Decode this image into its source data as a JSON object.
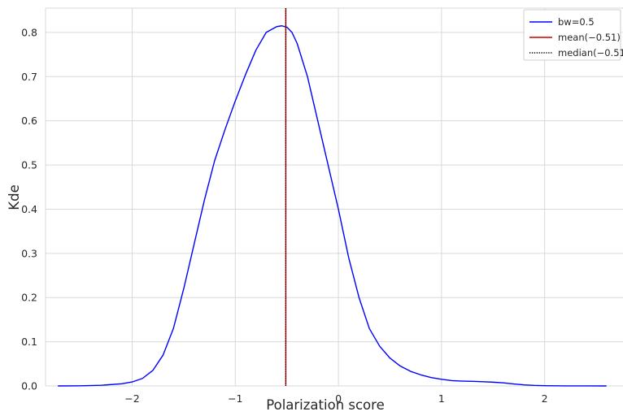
{
  "chart_data": {
    "type": "line",
    "title": "",
    "xlabel": "Polarization score",
    "ylabel": "Kde",
    "xlim": [
      -2.84,
      2.76
    ],
    "ylim": [
      0,
      0.855
    ],
    "grid": true,
    "legend_position": "top-right",
    "x_ticks": [
      {
        "value": -2,
        "label": "−2"
      },
      {
        "value": -1,
        "label": "−1"
      },
      {
        "value": 0,
        "label": "0"
      },
      {
        "value": 1,
        "label": "1"
      },
      {
        "value": 2,
        "label": "2"
      }
    ],
    "y_ticks": [
      {
        "value": 0.0,
        "label": "0.0"
      },
      {
        "value": 0.1,
        "label": "0.1"
      },
      {
        "value": 0.2,
        "label": "0.2"
      },
      {
        "value": 0.3,
        "label": "0.3"
      },
      {
        "value": 0.4,
        "label": "0.4"
      },
      {
        "value": 0.5,
        "label": "0.5"
      },
      {
        "value": 0.6,
        "label": "0.6"
      },
      {
        "value": 0.7,
        "label": "0.7"
      },
      {
        "value": 0.8,
        "label": "0.8"
      }
    ],
    "series": [
      {
        "name": "bw=0.5",
        "color": "#0000ff",
        "style": "solid",
        "x": [
          -2.72,
          -2.5,
          -2.3,
          -2.1,
          -2.0,
          -1.9,
          -1.8,
          -1.7,
          -1.6,
          -1.5,
          -1.4,
          -1.3,
          -1.2,
          -1.1,
          -1.0,
          -0.9,
          -0.8,
          -0.7,
          -0.6,
          -0.55,
          -0.5,
          -0.45,
          -0.4,
          -0.3,
          -0.2,
          -0.1,
          0.0,
          0.1,
          0.2,
          0.3,
          0.4,
          0.5,
          0.6,
          0.7,
          0.8,
          0.9,
          1.0,
          1.1,
          1.2,
          1.3,
          1.4,
          1.5,
          1.6,
          1.7,
          1.8,
          1.9,
          2.0,
          2.2,
          2.4,
          2.6
        ],
        "y": [
          0.0,
          0.0003,
          0.0015,
          0.005,
          0.009,
          0.017,
          0.035,
          0.07,
          0.13,
          0.22,
          0.32,
          0.42,
          0.51,
          0.58,
          0.645,
          0.705,
          0.76,
          0.8,
          0.813,
          0.815,
          0.812,
          0.8,
          0.775,
          0.7,
          0.6,
          0.5,
          0.4,
          0.29,
          0.2,
          0.13,
          0.09,
          0.063,
          0.045,
          0.033,
          0.025,
          0.019,
          0.015,
          0.012,
          0.011,
          0.0105,
          0.0095,
          0.0085,
          0.007,
          0.0045,
          0.0025,
          0.0012,
          0.0006,
          0.0002,
          0.0001,
          0.0
        ]
      },
      {
        "name": "mean(−0.51)",
        "color": "#cc0000",
        "style": "solid",
        "vline": -0.51
      },
      {
        "name": "median(−0.51)",
        "color": "#000000",
        "style": "dotted",
        "vline": -0.51
      }
    ]
  }
}
